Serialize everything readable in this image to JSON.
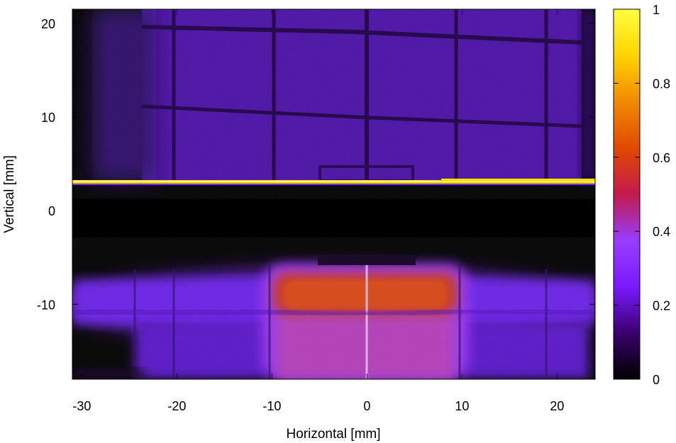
{
  "chart_data": {
    "type": "heatmap",
    "title": "",
    "xlabel": "Horizontal [mm]",
    "ylabel": "Vertical [mm]",
    "xlim": [
      -31,
      24
    ],
    "ylim": [
      -18,
      21.5
    ],
    "x_ticks": [
      -30,
      -20,
      -10,
      0,
      10,
      20
    ],
    "y_ticks": [
      -10,
      0,
      10,
      20
    ],
    "colorbar": {
      "range": [
        0,
        1
      ],
      "ticks": [
        0,
        0.2,
        0.4,
        0.6,
        0.8,
        1
      ],
      "tick_labels": [
        "0",
        "0.2",
        "0.4",
        "0.6",
        "0.8",
        "1"
      ],
      "colors": [
        "#000000",
        "#3a006e",
        "#7a1aff",
        "#9a3cff",
        "#c21a4e",
        "#e04a00",
        "#f08a00",
        "#ffd400",
        "#ffff40"
      ]
    },
    "grid": false,
    "legend": "right (colorbar)"
  }
}
